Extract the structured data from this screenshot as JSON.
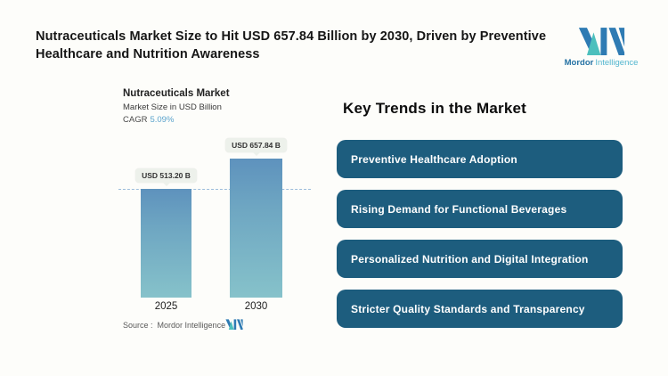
{
  "header": {
    "title_line1": "Nutraceuticals Market Size to Hit USD 657.84 Billion by 2030, Driven by Preventive",
    "title_line2": "Healthcare and Nutrition Awareness"
  },
  "logo": {
    "brand_bold": "Mordor",
    "brand_light": "Intelligence"
  },
  "chart": {
    "title": "Nutraceuticals Market",
    "subtitle": "Market Size in USD Billion",
    "cagr_label": "CAGR",
    "cagr_value": "5.09%",
    "source_label": "Source :",
    "source_value": "Mordor Intelligence"
  },
  "chart_data": {
    "type": "bar",
    "title": "Nutraceuticals Market",
    "ylabel": "Market Size in USD Billion",
    "cagr": "5.09%",
    "categories": [
      "2025",
      "2030"
    ],
    "values": [
      513.2,
      657.84
    ],
    "value_labels": [
      "USD 513.20 B",
      "USD 657.84 B"
    ],
    "reference_line_at": 513.2,
    "legend": false,
    "grid": false,
    "source": "Mordor Intelligence"
  },
  "trends": {
    "heading": "Key Trends in the Market",
    "items": [
      {
        "label": "Preventive Healthcare Adoption"
      },
      {
        "label": "Rising Demand for Functional Beverages"
      },
      {
        "label": "Personalized Nutrition and Digital Integration"
      },
      {
        "label": "Stricter Quality Standards and Transparency"
      }
    ]
  },
  "colors": {
    "trend_button_bg": "#1d5d7e",
    "bar_gradient_top": "#5e92bd",
    "bar_gradient_bottom": "#86c2ca",
    "cagr_accent": "#5ba3cc",
    "dashed_reference_line": "#9cbcdb",
    "logo_dark_blue": "#2e7bb3",
    "logo_teal": "#4cc0bd",
    "label_pill_bg": "#edf1eb"
  }
}
